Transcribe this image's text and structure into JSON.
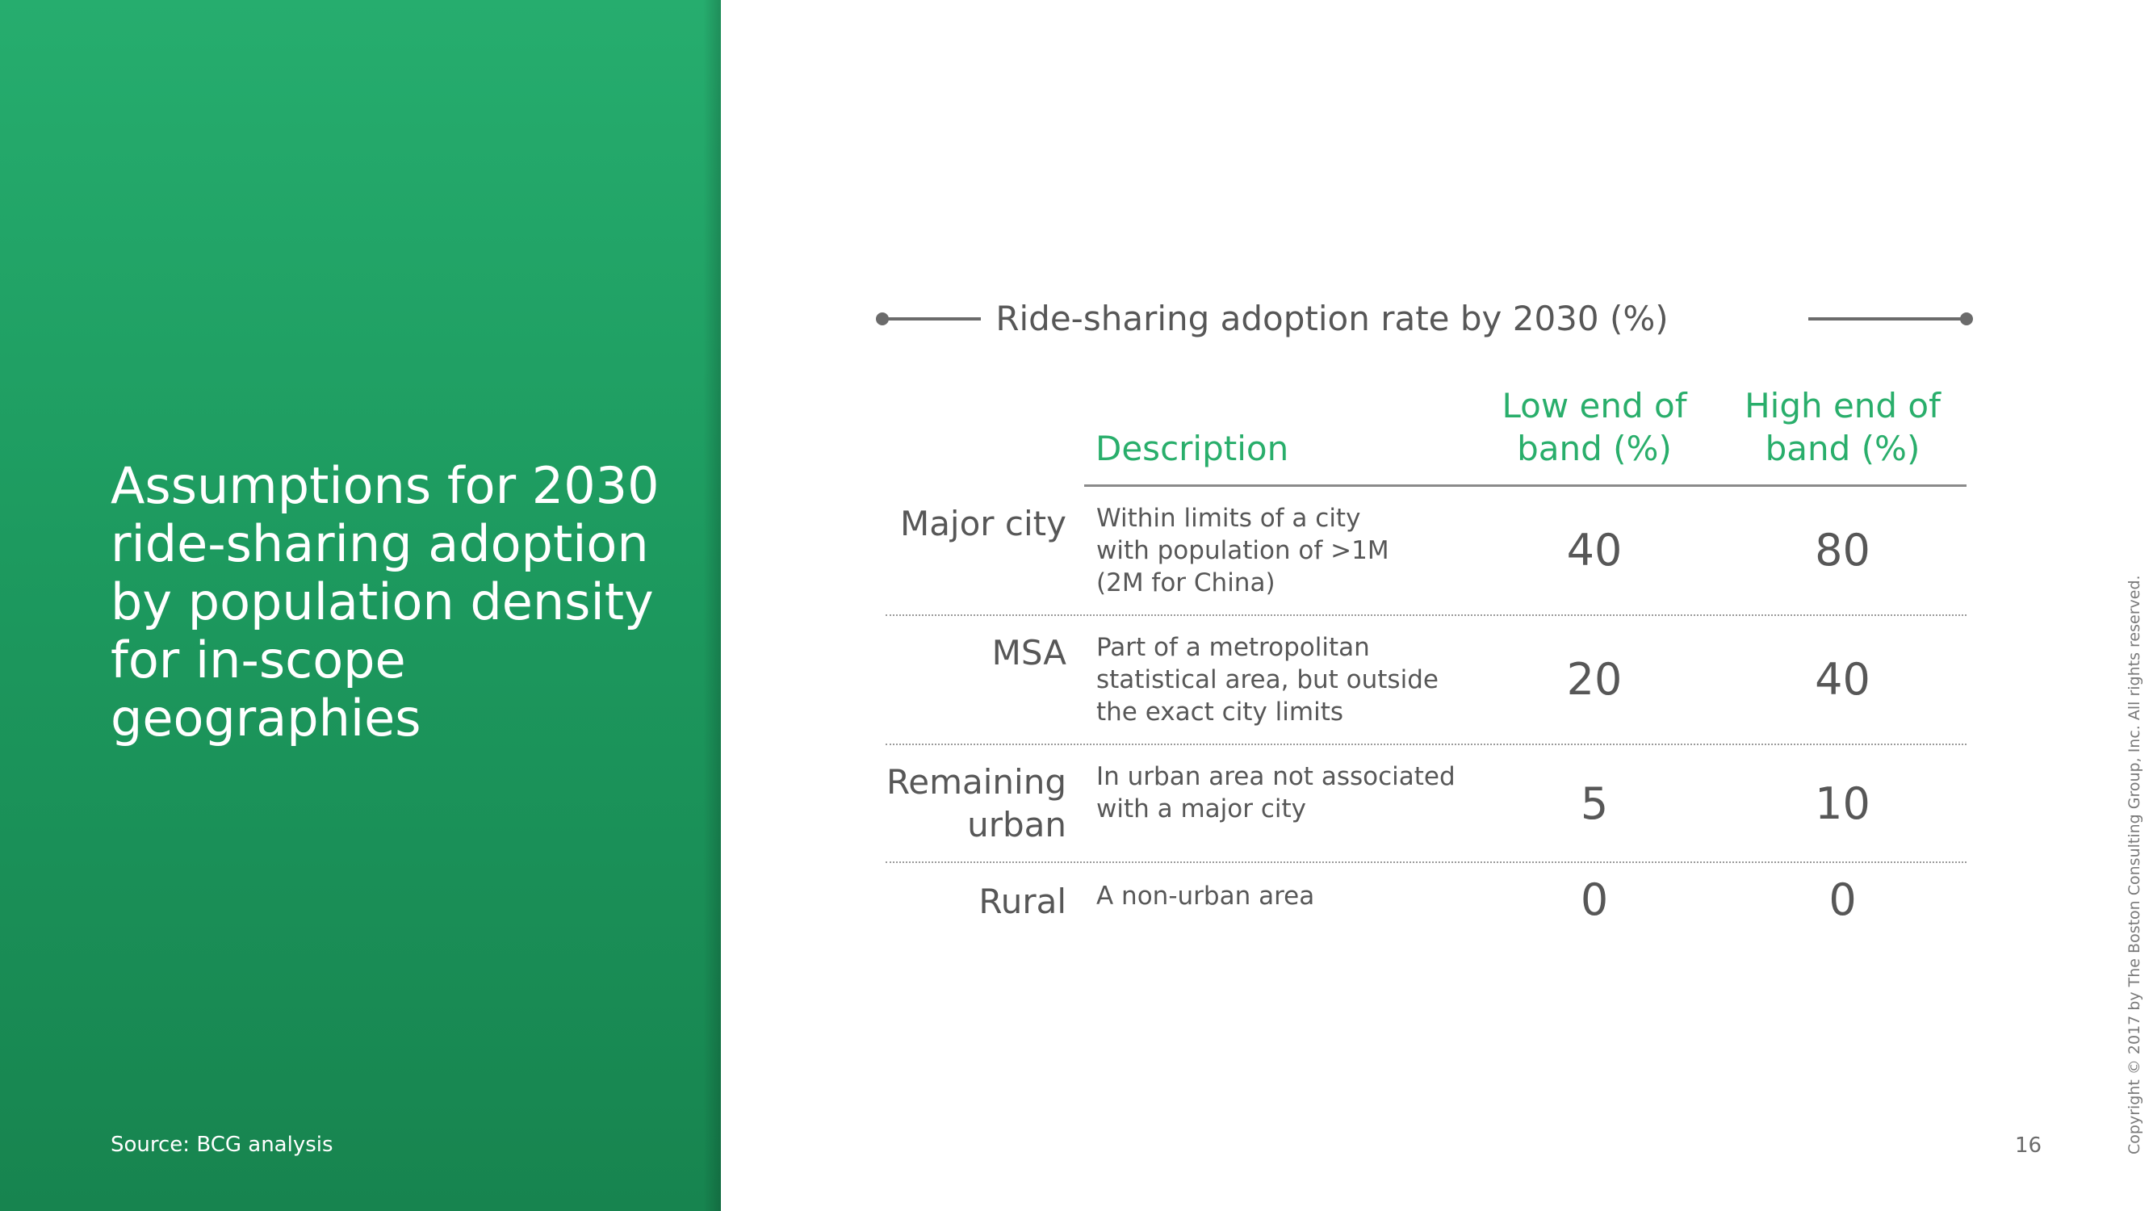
{
  "title": "Assumptions for 2030 ride-sharing adoption by population density for in-scope geographies",
  "source": "Source: BCG analysis",
  "table": {
    "heading": "Ride-sharing adoption rate by 2030 (%)",
    "columns": {
      "description": "Description",
      "low": [
        "Low end of",
        "band (%)"
      ],
      "high": [
        "High end of",
        "band (%)"
      ]
    },
    "rows": [
      {
        "label": [
          "Major city"
        ],
        "description": [
          "Within limits of a city",
          "with population of >1M",
          "(2M for China)"
        ],
        "low": "40",
        "high": "80"
      },
      {
        "label": [
          "MSA"
        ],
        "description": [
          "Part of a metropolitan",
          "statistical area, but outside",
          "the exact city limits"
        ],
        "low": "20",
        "high": "40"
      },
      {
        "label": [
          "Remaining",
          "urban"
        ],
        "description": [
          "In urban area not associated",
          "with a major city"
        ],
        "low": "5",
        "high": "10"
      },
      {
        "label": [
          "Rural"
        ],
        "description": [
          "A non-urban area"
        ],
        "low": "0",
        "high": "0"
      }
    ]
  },
  "page_number": "16",
  "copyright": "Copyright © 2017 by The Boston Consulting Group, Inc. All rights reserved.",
  "colors": {
    "accent_green": "#29ae6b",
    "panel_green": "#1d9a5f",
    "text_gray": "#575757"
  }
}
